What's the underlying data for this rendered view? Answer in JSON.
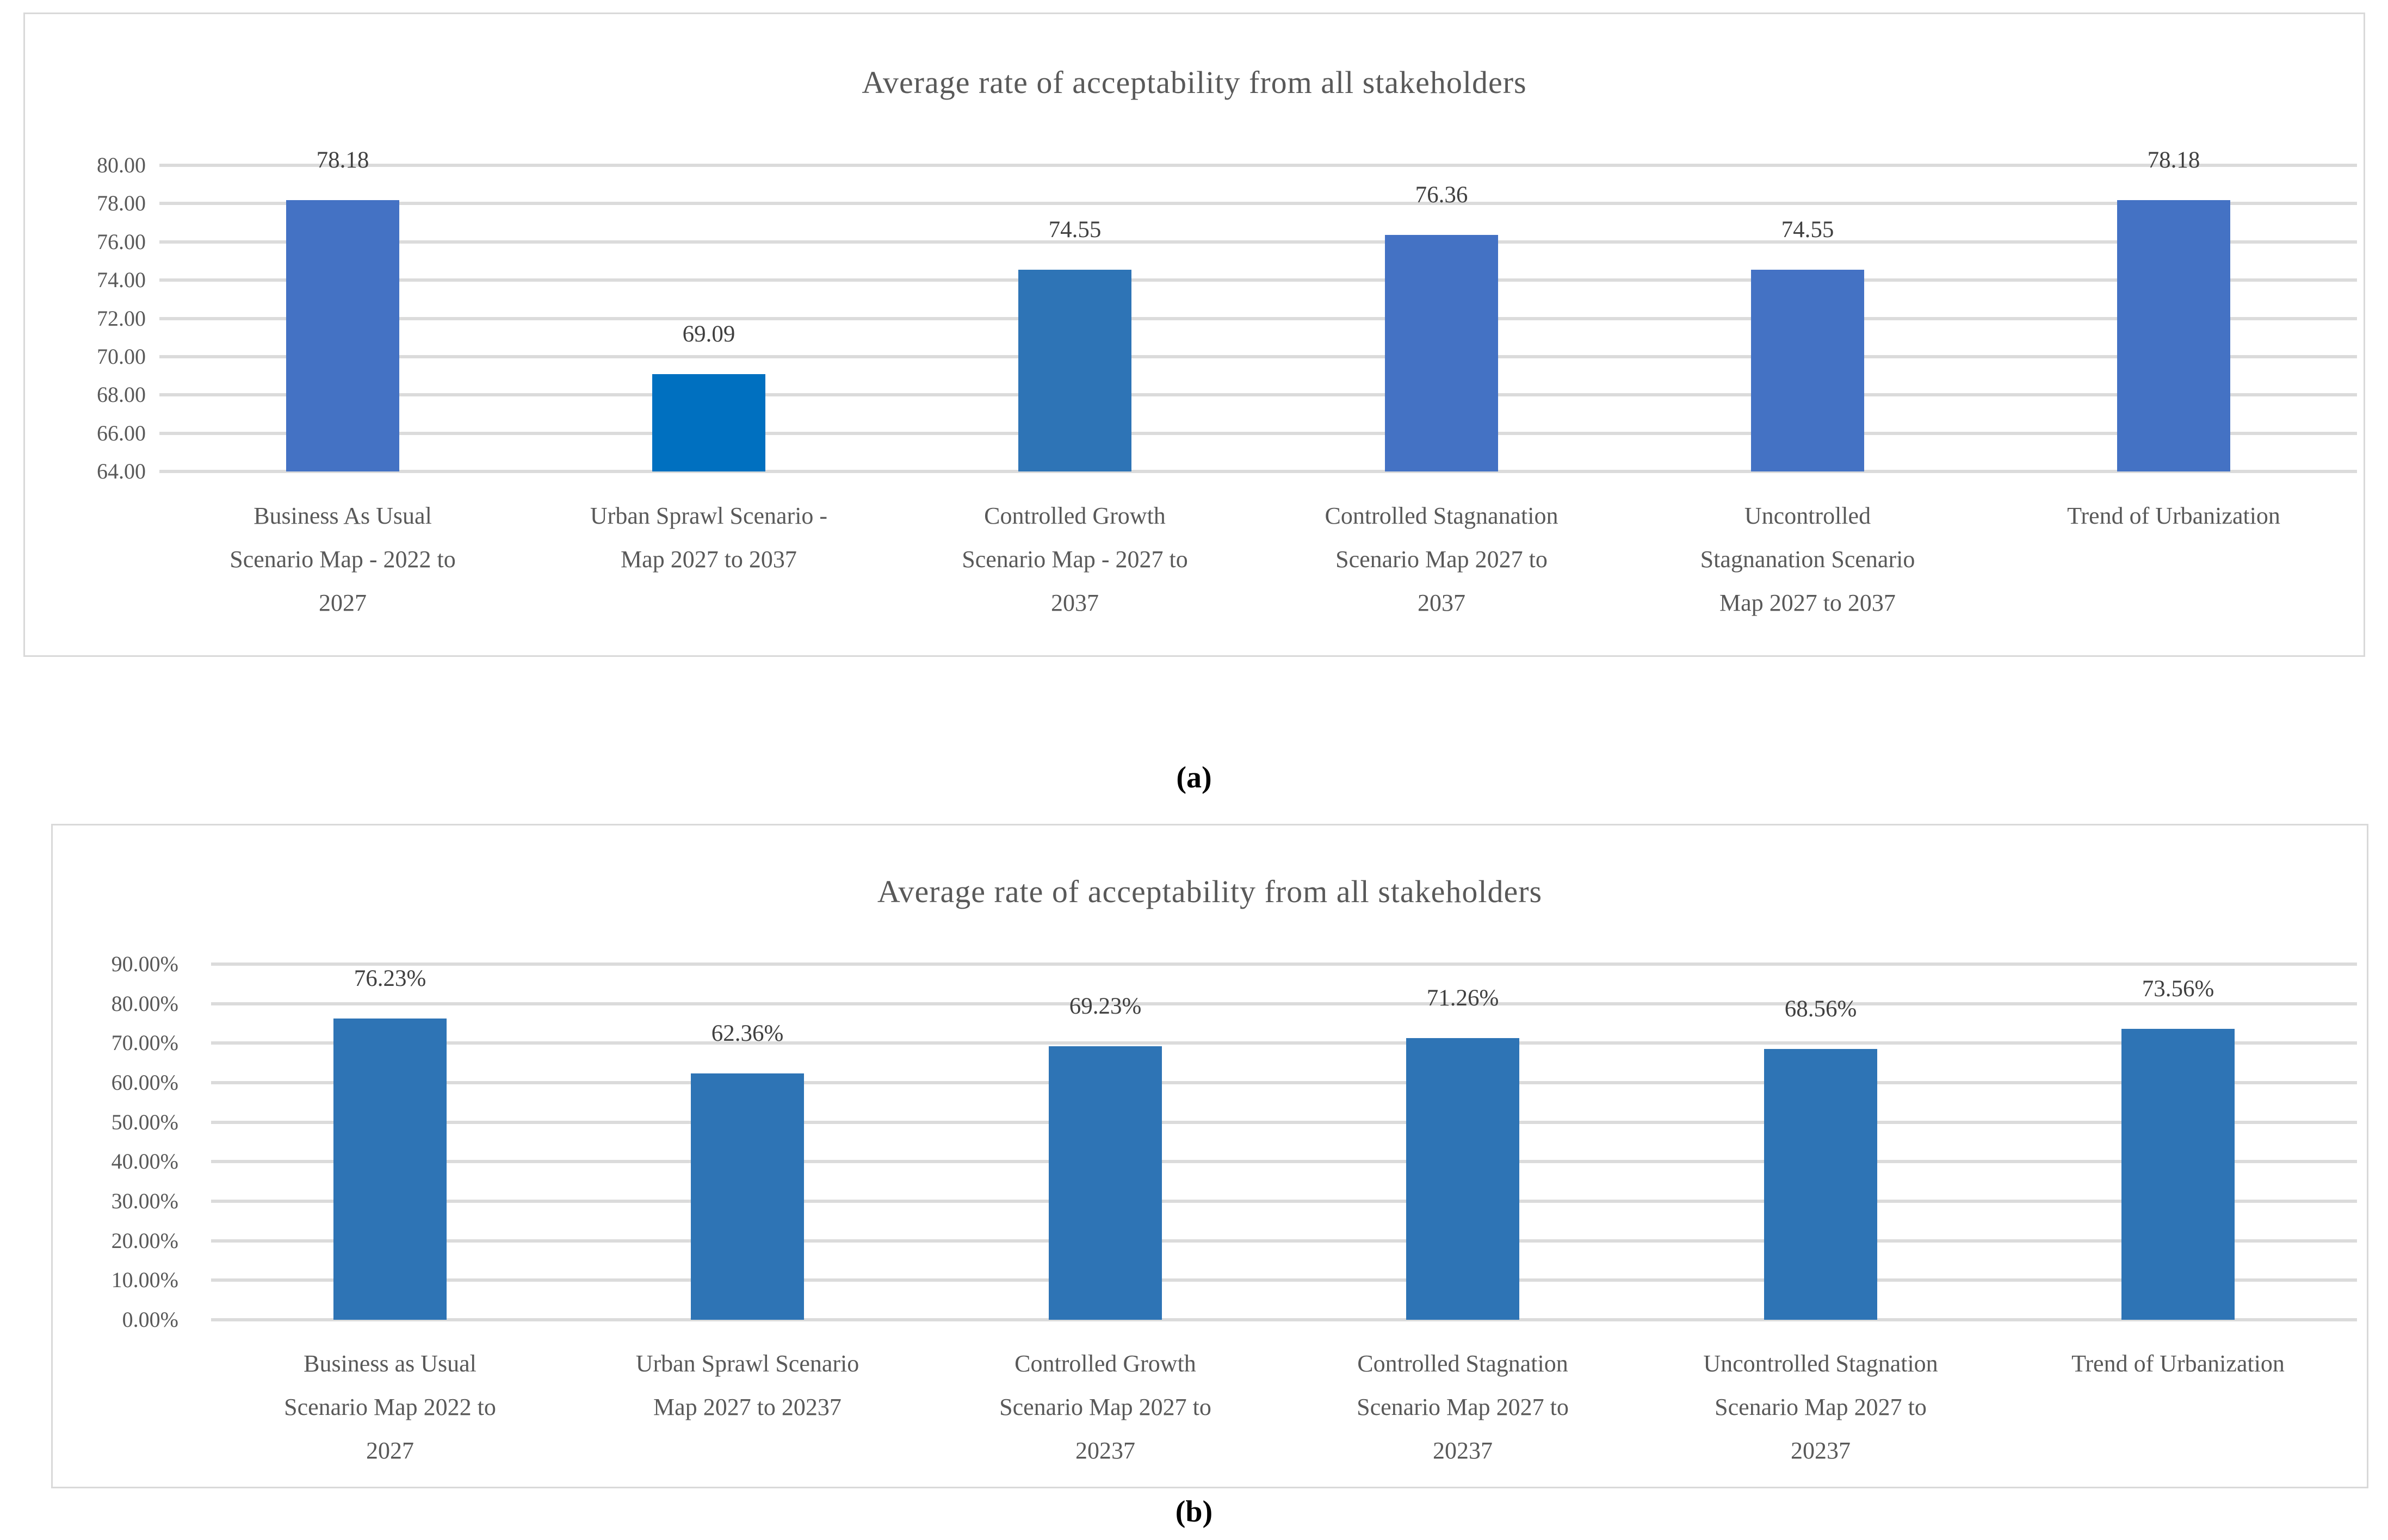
{
  "captions": {
    "a": "(a)",
    "b": "(b)"
  },
  "colors": {
    "gridline": "#DBDBDB",
    "box_border": "#D9D9D9",
    "title_text": "#595959",
    "axis_text": "#595959",
    "value_text": "#404040",
    "accent_blue": "#4472C4",
    "bright_blue": "#0070C0",
    "steel_blue": "#2E74B5"
  },
  "chart_data": [
    {
      "id": "a",
      "type": "bar",
      "title": "Average rate of acceptability from all stakeholders",
      "xlabel": "",
      "ylabel": "",
      "grid": true,
      "legend": "none",
      "ylim": [
        64,
        80
      ],
      "ytick_step": 2,
      "ytick_labels": [
        "80.00",
        "78.00",
        "76.00",
        "74.00",
        "72.00",
        "70.00",
        "68.00",
        "66.00",
        "64.00"
      ],
      "categories": [
        "Business As Usual Scenario Map - 2022 to 2027",
        "Urban Sprawl Scenario - Map 2027 to 2037",
        "Controlled Growth Scenario Map - 2027 to 2037",
        "Controlled Stagnanation Scenario Map 2027 to 2037",
        "Uncontrolled Stagnanation Scenario Map 2027 to 2037",
        "Trend of Urbanization"
      ],
      "category_lines": [
        [
          "Business As Usual",
          "Scenario Map - 2022 to",
          "2027"
        ],
        [
          "Urban Sprawl Scenario -",
          "Map 2027 to 2037"
        ],
        [
          "Controlled Growth",
          "Scenario Map - 2027 to",
          "2037"
        ],
        [
          "Controlled Stagnanation",
          "Scenario Map 2027 to",
          "2037"
        ],
        [
          "Uncontrolled",
          "Stagnanation Scenario",
          "Map 2027 to 2037"
        ],
        [
          "Trend of Urbanization"
        ]
      ],
      "values": [
        78.18,
        69.09,
        74.55,
        76.36,
        74.55,
        78.18
      ],
      "value_labels": [
        "78.18",
        "69.09",
        "74.55",
        "76.36",
        "74.55",
        "78.18"
      ],
      "bar_colors": [
        "#4472C4",
        "#0070C0",
        "#2E74B6",
        "#4472C4",
        "#4472C4",
        "#4472C4"
      ]
    },
    {
      "id": "b",
      "type": "bar",
      "title": "Average rate of acceptability from all stakeholders",
      "xlabel": "",
      "ylabel": "",
      "grid": true,
      "legend": "none",
      "ylim": [
        0,
        90
      ],
      "ytick_step": 10,
      "ytick_labels": [
        "90.00%",
        "80.00%",
        "70.00%",
        "60.00%",
        "50.00%",
        "40.00%",
        "30.00%",
        "20.00%",
        "10.00%",
        "0.00%"
      ],
      "categories": [
        "Business as Usual Scenario Map 2022 to 2027",
        "Urban Sprawl Scenario Map 2027 to 20237",
        "Controlled Growth Scenario Map 2027 to 20237",
        "Controlled Stagnation Scenario Map 2027 to 20237",
        "Uncontrolled Stagnation Scenario Map 2027 to 20237",
        "Trend of Urbanization"
      ],
      "category_lines": [
        [
          "Business as Usual",
          "Scenario Map 2022 to",
          "2027"
        ],
        [
          "Urban Sprawl Scenario",
          "Map 2027 to 20237"
        ],
        [
          "Controlled Growth",
          "Scenario Map 2027 to",
          "20237"
        ],
        [
          "Controlled Stagnation",
          "Scenario Map 2027 to",
          "20237"
        ],
        [
          "Uncontrolled Stagnation",
          "Scenario Map 2027 to",
          "20237"
        ],
        [
          "Trend of Urbanization"
        ]
      ],
      "values": [
        76.23,
        62.36,
        69.23,
        71.26,
        68.56,
        73.56
      ],
      "value_labels": [
        "76.23%",
        "62.36%",
        "69.23%",
        "71.26%",
        "68.56%",
        "73.56%"
      ],
      "bar_colors": [
        "#2E74B5",
        "#2E74B5",
        "#2E74B5",
        "#2E74B5",
        "#2E74B5",
        "#2E74B5"
      ]
    }
  ]
}
